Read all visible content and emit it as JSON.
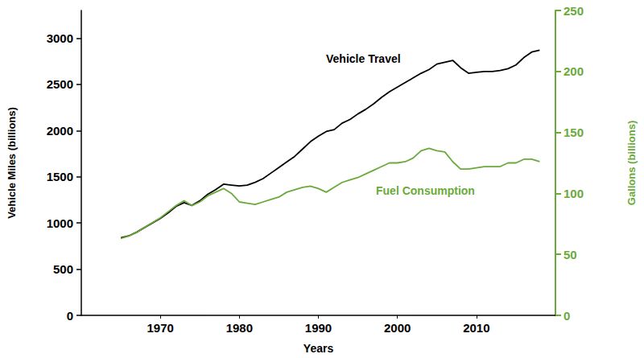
{
  "chart_data": {
    "type": "line",
    "x": [
      1965,
      1966,
      1967,
      1968,
      1969,
      1970,
      1971,
      1972,
      1973,
      1974,
      1975,
      1976,
      1977,
      1978,
      1979,
      1980,
      1981,
      1982,
      1983,
      1984,
      1985,
      1986,
      1987,
      1988,
      1989,
      1990,
      1991,
      1992,
      1993,
      1994,
      1995,
      1996,
      1997,
      1998,
      1999,
      2000,
      2001,
      2002,
      2003,
      2004,
      2005,
      2006,
      2007,
      2008,
      2009,
      2010,
      2011,
      2012,
      2013,
      2014,
      2015,
      2016,
      2017,
      2018
    ],
    "series": [
      {
        "name": "Vehicle Travel",
        "color": "#000000",
        "values": [
          840,
          860,
          900,
          950,
          1000,
          1050,
          1110,
          1180,
          1220,
          1190,
          1240,
          1310,
          1360,
          1420,
          1410,
          1400,
          1410,
          1440,
          1480,
          1540,
          1600,
          1660,
          1720,
          1800,
          1880,
          1940,
          1990,
          2010,
          2080,
          2120,
          2180,
          2230,
          2290,
          2360,
          2420,
          2470,
          2520,
          2570,
          2620,
          2660,
          2720,
          2740,
          2760,
          2680,
          2620,
          2630,
          2640,
          2640,
          2650,
          2670,
          2710,
          2790,
          2850,
          2870
        ]
      },
      {
        "name": "Fuel Consumption",
        "color": "#6aaa3a",
        "axis": "y2",
        "values": [
          63,
          65,
          68,
          72,
          76,
          80,
          85,
          90,
          94,
          90,
          93,
          98,
          101,
          104,
          100,
          93,
          92,
          91,
          93,
          95,
          97,
          101,
          103,
          105,
          106,
          104,
          101,
          105,
          109,
          111,
          113,
          116,
          119,
          122,
          125,
          125,
          126,
          129,
          135,
          137,
          135,
          134,
          126,
          120,
          120,
          121,
          122,
          122,
          122,
          125,
          125,
          128,
          128,
          126
        ]
      }
    ],
    "xlabel": "Years",
    "ylabel": "Vehicle Miles (billions)",
    "y2label": "Gallons (billions)",
    "xlim": [
      1960,
      2020
    ],
    "xticks": [
      1970,
      1980,
      1990,
      2000,
      2010
    ],
    "ylim": [
      0,
      3300
    ],
    "yticks": [
      0,
      500,
      1000,
      1500,
      2000,
      2500,
      3000
    ],
    "y2lim": [
      0,
      250
    ],
    "y2ticks": [
      0,
      50,
      100,
      150,
      200,
      250
    ],
    "grid": false
  }
}
